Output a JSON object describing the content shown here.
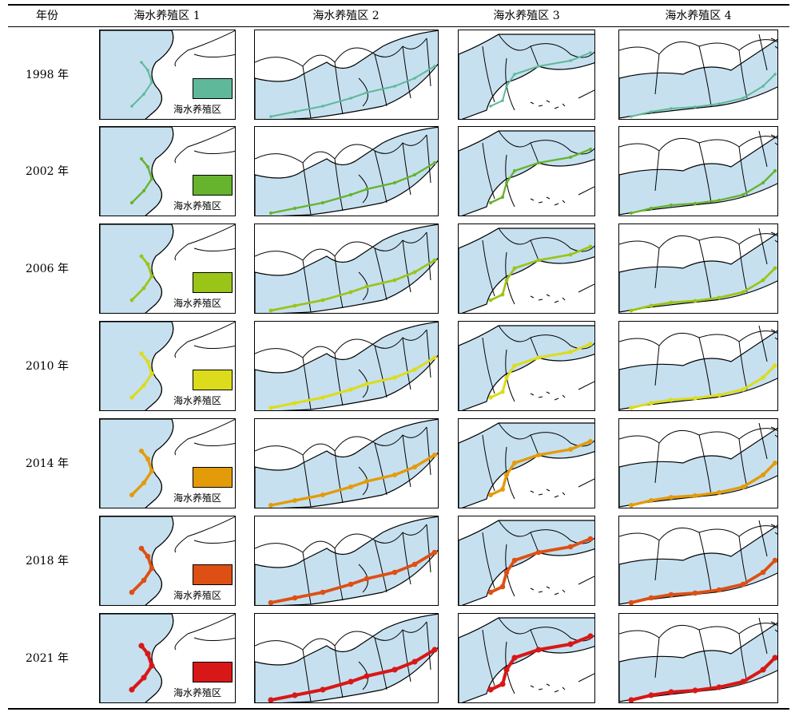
{
  "table": {
    "header": {
      "year_col": "年份",
      "zones": [
        "海水养殖区 1",
        "海水养殖区 2",
        "海水养殖区 3",
        "海水养殖区 4"
      ]
    },
    "rows": [
      {
        "year": "1998 年",
        "color": "#5fb89a"
      },
      {
        "year": "2002 年",
        "color": "#66b32e"
      },
      {
        "year": "2006 年",
        "color": "#9bc418"
      },
      {
        "year": "2010 年",
        "color": "#dcdc1c"
      },
      {
        "year": "2014 年",
        "color": "#e39b0a"
      },
      {
        "year": "2018 年",
        "color": "#de4f14"
      },
      {
        "year": "2021 年",
        "color": "#d81818"
      }
    ],
    "legend_label": "海水养殖区"
  },
  "map_style": {
    "land_fill": "#c6e0ef",
    "boundary": "#000000",
    "background": "#ffffff"
  }
}
